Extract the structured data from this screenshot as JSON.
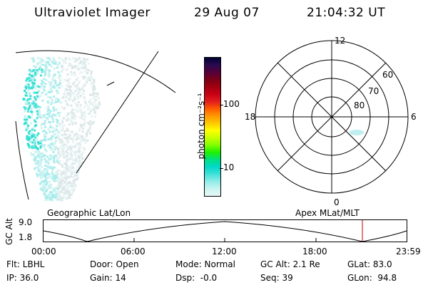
{
  "header": {
    "instrument": "Ultraviolet Imager",
    "date": "29 Aug 07",
    "time": "21:04:32 UT"
  },
  "colorbar": {
    "unit_label": "photon cm⁻²s⁻¹",
    "ticks": [
      "100",
      "10"
    ],
    "colors": [
      "#000033",
      "#2a0a50",
      "#55003a",
      "#7a0018",
      "#a00010",
      "#c80014",
      "#e01e1e",
      "#ff5a00",
      "#ff9800",
      "#ffc800",
      "#ffff00",
      "#c8ff00",
      "#80ff00",
      "#20f000",
      "#00e080",
      "#00d8c8",
      "#40e0d8",
      "#90ece8",
      "#c8f4f0",
      "#e8f8f8"
    ]
  },
  "polar": {
    "mlt_labels": {
      "top": "12",
      "left": "18",
      "right": "6",
      "bottom": "0"
    },
    "lat_labels": [
      "60",
      "70",
      "80"
    ]
  },
  "timeline": {
    "ylabel": "GC Alt",
    "y_ticks": [
      "9.0",
      "1.8"
    ],
    "left_title": "Geographic Lat/Lon",
    "right_title": "Apex MLat/MLT",
    "x_ticks": [
      "00:00",
      "06:00",
      "12:00",
      "18:00",
      "23:59"
    ],
    "marker_color": "#c00000"
  },
  "status": {
    "row1": [
      {
        "key": "flt",
        "text": "Flt: LBHL"
      },
      {
        "key": "door",
        "text": "Door: Open"
      },
      {
        "key": "mode",
        "text": "Mode: Normal"
      },
      {
        "key": "gcalt",
        "text": "GC Alt: 2.1 Re"
      },
      {
        "key": "glat",
        "text": "GLat: 83.0"
      }
    ],
    "row2": [
      {
        "key": "ip",
        "text": "IP: 36.0"
      },
      {
        "key": "gain",
        "text": "Gain: 14"
      },
      {
        "key": "dsp",
        "text": "Dsp:  -0.0"
      },
      {
        "key": "seq",
        "text": "Seq: 39"
      },
      {
        "key": "glon",
        "text": "GLon:  94.8"
      }
    ]
  }
}
